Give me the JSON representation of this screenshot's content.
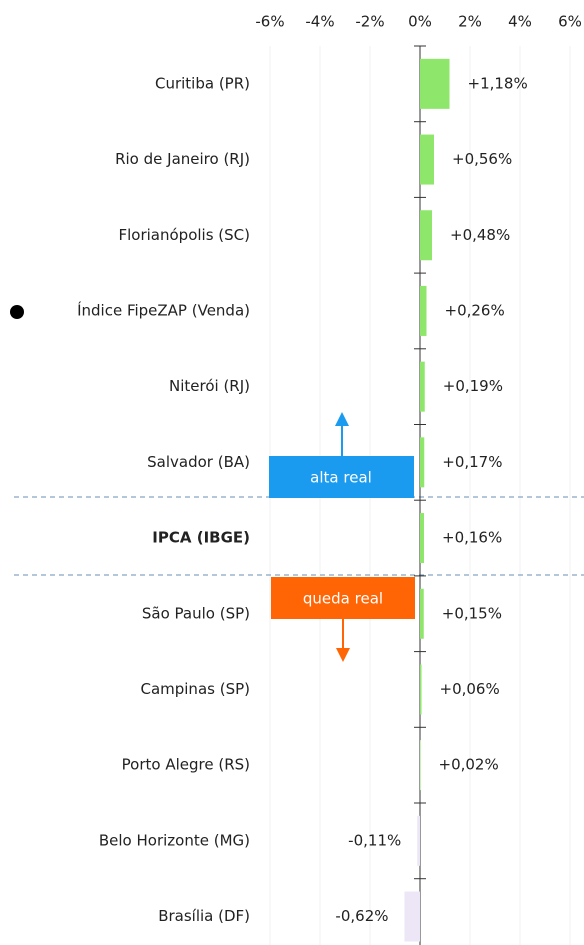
{
  "chart_data": {
    "type": "bar",
    "orientation": "horizontal",
    "categories": [
      "Curitiba (PR)",
      "Rio de Janeiro (RJ)",
      "Florianópolis (SC)",
      "Índice FipeZAP (Venda)",
      "Niterói (RJ)",
      "Salvador (BA)",
      "IPCA (IBGE)",
      "São Paulo (SP)",
      "Campinas (SP)",
      "Porto Alegre (RS)",
      "Belo Horizonte (MG)",
      "Brasília (DF)"
    ],
    "values": [
      1.18,
      0.56,
      0.48,
      0.26,
      0.19,
      0.17,
      0.16,
      0.15,
      0.06,
      0.02,
      -0.11,
      -0.62
    ],
    "value_labels": [
      "+1,18%",
      "+0,56%",
      "+0,48%",
      "+0,26%",
      "+0,19%",
      "+0,17%",
      "+0,16%",
      "+0,15%",
      "+0,06%",
      "+0,02%",
      "-0,11%",
      "-0,62%"
    ],
    "positive_color": "#8ee66a",
    "negative_color": "#ece6f6",
    "xlim": [
      -6,
      6.6
    ],
    "xticks": [
      {
        "value": -6,
        "label": "-6%"
      },
      {
        "value": -4,
        "label": "-4%"
      },
      {
        "value": -2,
        "label": "-2%"
      },
      {
        "value": 0,
        "label": "0%"
      },
      {
        "value": 2,
        "label": "2%"
      },
      {
        "value": 4,
        "label": "4%"
      },
      {
        "value": 6,
        "label": "6%"
      }
    ],
    "grid": true,
    "annotations": [
      "alta real",
      "queda real"
    ]
  }
}
